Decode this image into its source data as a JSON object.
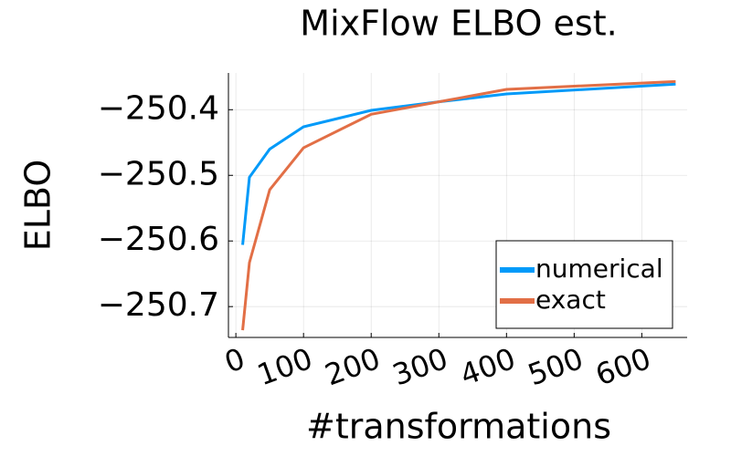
{
  "chart_data": {
    "type": "line",
    "title": "MixFlow ELBO est.",
    "xlabel": "#transformations",
    "ylabel": "ELBO",
    "x": [
      10,
      20,
      50,
      100,
      200,
      300,
      400,
      650
    ],
    "series": [
      {
        "name": "numerical",
        "color": "#009af9",
        "values": [
          -250.606,
          -250.503,
          -250.46,
          -250.426,
          -250.401,
          -250.388,
          -250.376,
          -250.361
        ]
      },
      {
        "name": "exact",
        "color": "#e26f46",
        "values": [
          -250.736,
          -250.633,
          -250.522,
          -250.458,
          -250.407,
          -250.388,
          -250.369,
          -250.357
        ]
      }
    ],
    "xlim": [
      -11,
      667
    ],
    "ylim": [
      -250.747,
      -250.344
    ],
    "xticks": [
      0,
      100,
      200,
      300,
      400,
      500,
      600
    ],
    "yticks": [
      {
        "value": -250.7,
        "label": "−250.7"
      },
      {
        "value": -250.6,
        "label": "−250.6"
      },
      {
        "value": -250.5,
        "label": "−250.5"
      },
      {
        "value": -250.4,
        "label": "−250.4"
      }
    ],
    "grid": true,
    "legend": "bottom-right"
  }
}
